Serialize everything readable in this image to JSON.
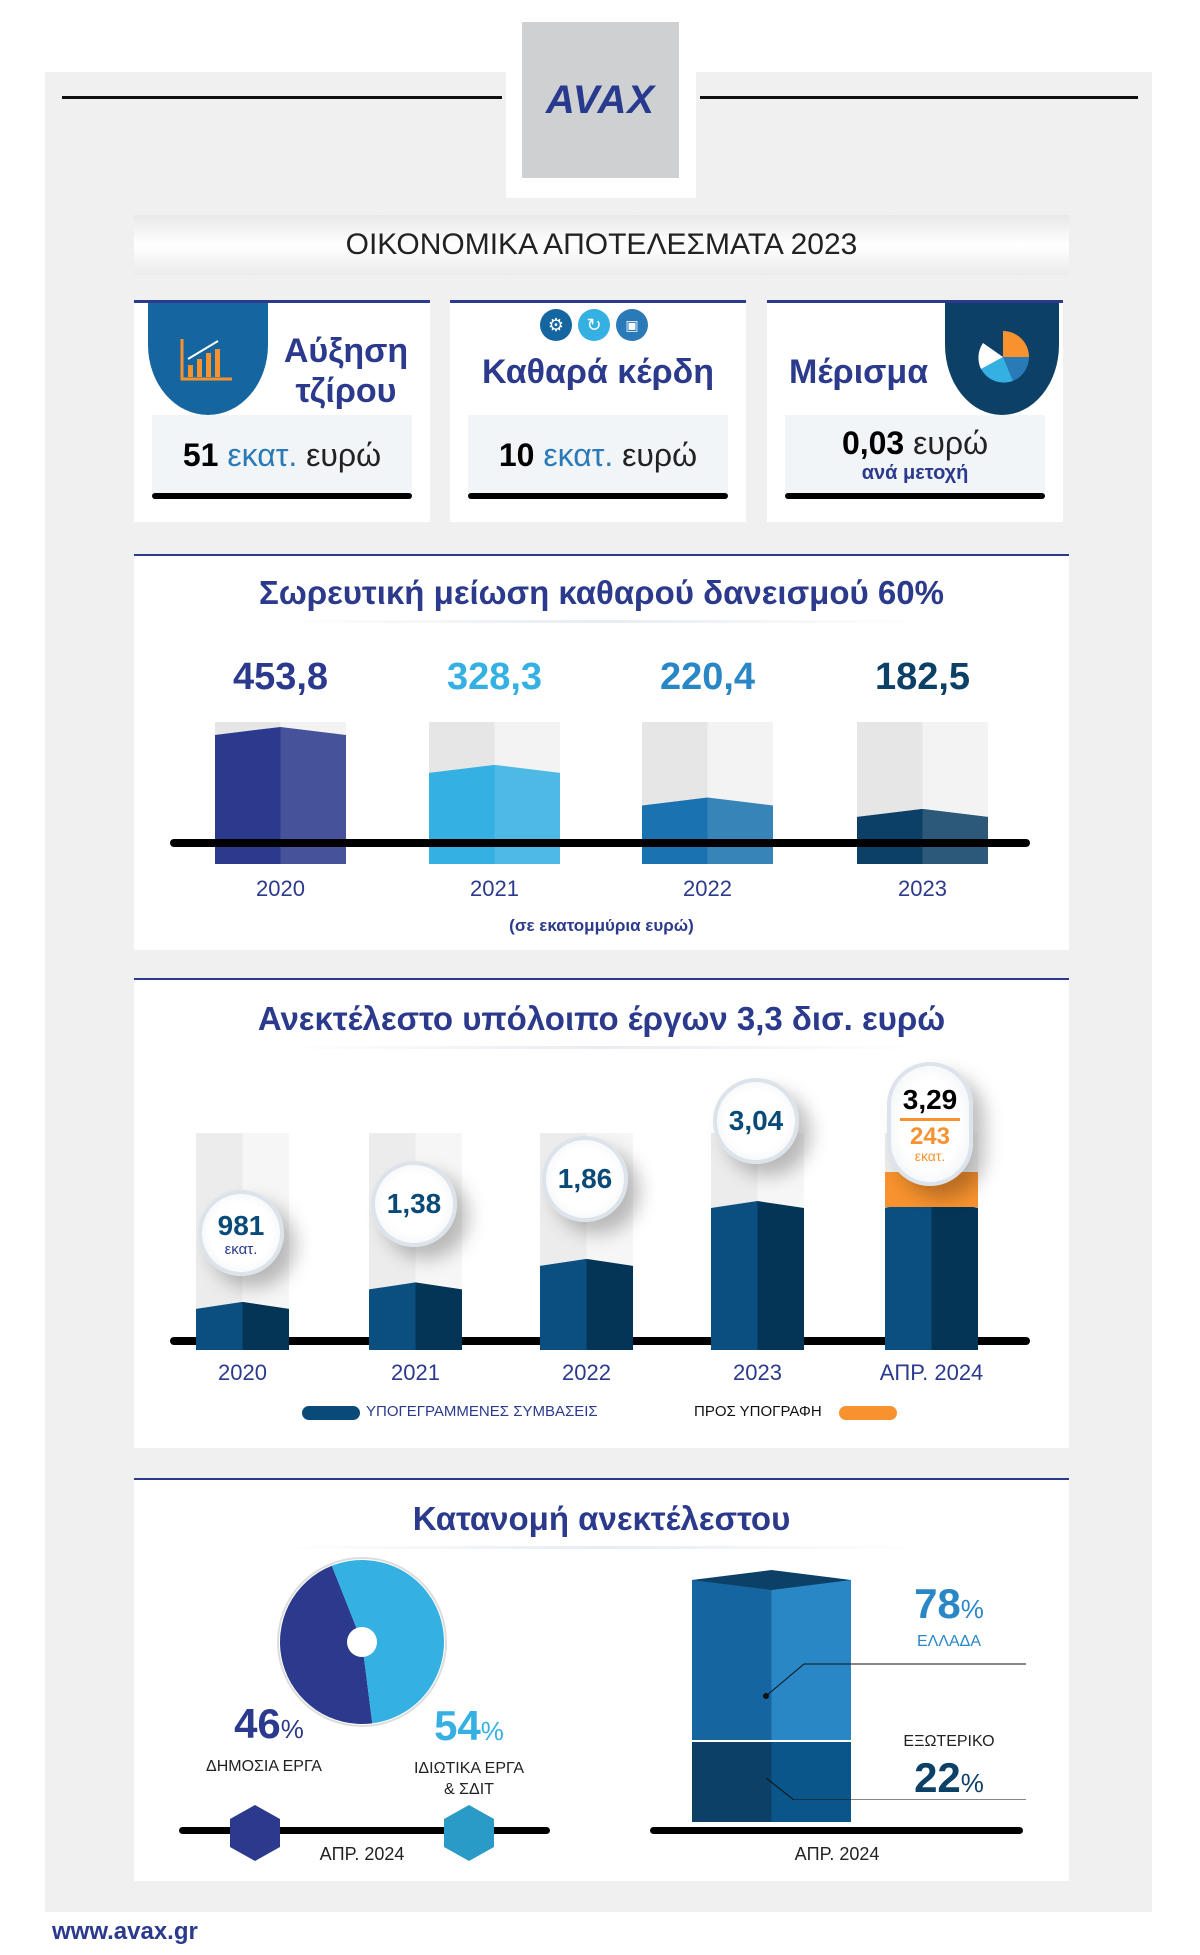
{
  "logo": "AVAX",
  "header": {
    "title": "ΟΙΚΟΝΟΜΙΚΑ ΑΠΟΤΕΛΕΣΜΑΤΑ 2023"
  },
  "cards": [
    {
      "title_line1": "Αύξηση",
      "title_line2": "τζίρου",
      "value": "51",
      "unit": "εκατ.",
      "currency": "ευρώ"
    },
    {
      "title": "Καθαρά κέρδη",
      "value": "10",
      "unit": "εκατ.",
      "currency": "ευρώ"
    },
    {
      "title": "Μέρισμα",
      "value": "0,03",
      "currency": "ευρώ",
      "sub": "ανά μετοχή"
    }
  ],
  "colors": {
    "navy": "#2b3a8c",
    "dark_blue": "#0a4a78",
    "light_blue": "#35b0e2",
    "orange": "#f7922e"
  },
  "chart_data": [
    {
      "type": "bar",
      "title": "Σωρευτική μείωση καθαρού δανεισμού 60%",
      "categories": [
        "2020",
        "2021",
        "2022",
        "2023"
      ],
      "values": [
        453.8,
        328.3,
        220.4,
        182.5
      ],
      "labels": [
        "453,8",
        "328,3",
        "220,4",
        "182,5"
      ],
      "note": "(σε εκατομμύρια ευρώ)"
    },
    {
      "type": "bar",
      "title": "Ανεκτέλεστο υπόλοιπο έργων 3,3 δισ. ευρώ",
      "categories": [
        "2020",
        "2021",
        "2022",
        "2023",
        "ΑΠΡ. 2024"
      ],
      "series": [
        {
          "name": "ΥΠΟΓΕΓΡΑΜΜΕΝΕΣ ΣΥΜΒΑΣΕΙΣ",
          "values": [
            0.981,
            1.38,
            1.86,
            3.04,
            3.047
          ]
        },
        {
          "name": "ΠΡΟΣ ΥΠΟΓΡΑΦΗ",
          "values": [
            0,
            0,
            0,
            0,
            0.243
          ]
        }
      ],
      "labels": [
        "981",
        "1,38",
        "1,86",
        "3,04",
        "3,29"
      ],
      "label_units": [
        "εκατ.",
        "",
        "",
        "",
        ""
      ],
      "extra_label": "243",
      "extra_unit": "εκατ."
    },
    {
      "type": "pie",
      "title": "Κατανομή ανεκτέλεστου",
      "slices": [
        {
          "label": "ΔΗΜΟΣΙΑ ΕΡΓΑ",
          "value": 46
        },
        {
          "label_line1": "ΙΔΙΩΤΙΚΑ ΕΡΓΑ",
          "label_line2": "& ΣΔΙΤ",
          "value": 54
        }
      ],
      "date": "ΑΠΡ. 2024"
    },
    {
      "type": "bar",
      "stacked": true,
      "slices": [
        {
          "label": "ΕΛΛΑΔΑ",
          "value": 78
        },
        {
          "label": "ΕΞΩΤΕΡΙΚΟ",
          "value": 22
        }
      ],
      "date": "ΑΠΡ. 2024"
    }
  ],
  "pct": "%",
  "footer": {
    "url": "www.avax.gr"
  }
}
